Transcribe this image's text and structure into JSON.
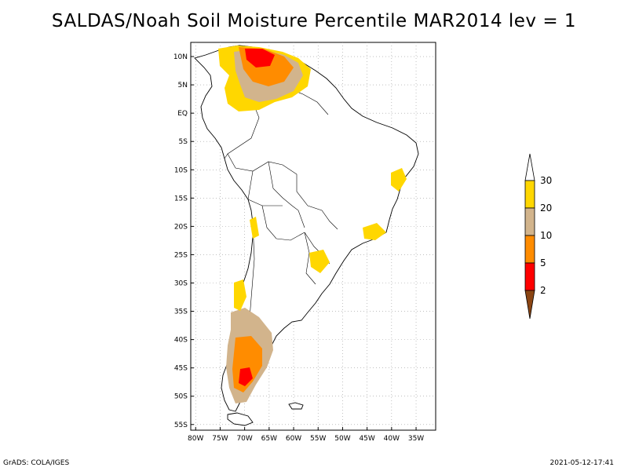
{
  "title": "SALDAS/Noah Soil Moisture Percentile MAR2014 lev = 1",
  "map": {
    "lon_range": [
      -81,
      -31
    ],
    "lat_range": [
      -56,
      12.5
    ],
    "lon_ticks": [
      "80W",
      "75W",
      "70W",
      "65W",
      "60W",
      "55W",
      "50W",
      "45W",
      "40W",
      "35W"
    ],
    "lat_ticks": [
      "10N",
      "5N",
      "EQ",
      "5S",
      "10S",
      "15S",
      "20S",
      "25S",
      "30S",
      "35S",
      "40S",
      "45S",
      "50S",
      "55S"
    ],
    "grid": true
  },
  "colorbar": {
    "levels": [
      "2",
      "5",
      "10",
      "20",
      "30"
    ],
    "colors": [
      "#8b4513",
      "#ff0000",
      "#ff8c00",
      "#d2b48c",
      "#ffd700",
      "#ffffff"
    ]
  },
  "footer": {
    "left": "GrADS: COLA/IGES",
    "right": "2021-05-12-17:41"
  }
}
